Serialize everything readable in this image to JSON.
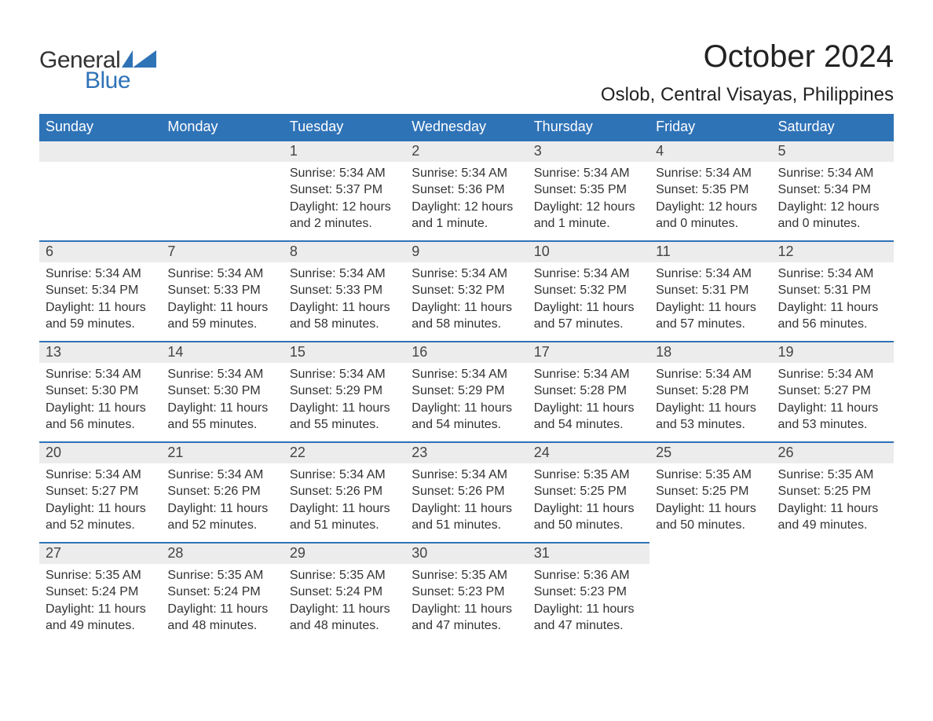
{
  "logo": {
    "word1": "General",
    "word2": "Blue"
  },
  "title": "October 2024",
  "location": "Oslob, Central Visayas, Philippines",
  "colors": {
    "brand_blue": "#2f73b7",
    "header_bg": "#2f73b7",
    "header_text": "#ffffff",
    "daynum_bg": "#ececec",
    "body_text": "#333333",
    "page_bg": "#ffffff"
  },
  "typography": {
    "title_fontsize": 40,
    "location_fontsize": 24,
    "weekday_fontsize": 18,
    "daynum_fontsize": 18,
    "body_fontsize": 16,
    "logo_fontsize": 30
  },
  "layout": {
    "columns": 7,
    "rows": 5,
    "first_weekday_index": 2
  },
  "weekdays": [
    "Sunday",
    "Monday",
    "Tuesday",
    "Wednesday",
    "Thursday",
    "Friday",
    "Saturday"
  ],
  "weeks": [
    [
      null,
      null,
      {
        "n": "1",
        "sunrise": "Sunrise: 5:34 AM",
        "sunset": "Sunset: 5:37 PM",
        "daylight": "Daylight: 12 hours and 2 minutes."
      },
      {
        "n": "2",
        "sunrise": "Sunrise: 5:34 AM",
        "sunset": "Sunset: 5:36 PM",
        "daylight": "Daylight: 12 hours and 1 minute."
      },
      {
        "n": "3",
        "sunrise": "Sunrise: 5:34 AM",
        "sunset": "Sunset: 5:35 PM",
        "daylight": "Daylight: 12 hours and 1 minute."
      },
      {
        "n": "4",
        "sunrise": "Sunrise: 5:34 AM",
        "sunset": "Sunset: 5:35 PM",
        "daylight": "Daylight: 12 hours and 0 minutes."
      },
      {
        "n": "5",
        "sunrise": "Sunrise: 5:34 AM",
        "sunset": "Sunset: 5:34 PM",
        "daylight": "Daylight: 12 hours and 0 minutes."
      }
    ],
    [
      {
        "n": "6",
        "sunrise": "Sunrise: 5:34 AM",
        "sunset": "Sunset: 5:34 PM",
        "daylight": "Daylight: 11 hours and 59 minutes."
      },
      {
        "n": "7",
        "sunrise": "Sunrise: 5:34 AM",
        "sunset": "Sunset: 5:33 PM",
        "daylight": "Daylight: 11 hours and 59 minutes."
      },
      {
        "n": "8",
        "sunrise": "Sunrise: 5:34 AM",
        "sunset": "Sunset: 5:33 PM",
        "daylight": "Daylight: 11 hours and 58 minutes."
      },
      {
        "n": "9",
        "sunrise": "Sunrise: 5:34 AM",
        "sunset": "Sunset: 5:32 PM",
        "daylight": "Daylight: 11 hours and 58 minutes."
      },
      {
        "n": "10",
        "sunrise": "Sunrise: 5:34 AM",
        "sunset": "Sunset: 5:32 PM",
        "daylight": "Daylight: 11 hours and 57 minutes."
      },
      {
        "n": "11",
        "sunrise": "Sunrise: 5:34 AM",
        "sunset": "Sunset: 5:31 PM",
        "daylight": "Daylight: 11 hours and 57 minutes."
      },
      {
        "n": "12",
        "sunrise": "Sunrise: 5:34 AM",
        "sunset": "Sunset: 5:31 PM",
        "daylight": "Daylight: 11 hours and 56 minutes."
      }
    ],
    [
      {
        "n": "13",
        "sunrise": "Sunrise: 5:34 AM",
        "sunset": "Sunset: 5:30 PM",
        "daylight": "Daylight: 11 hours and 56 minutes."
      },
      {
        "n": "14",
        "sunrise": "Sunrise: 5:34 AM",
        "sunset": "Sunset: 5:30 PM",
        "daylight": "Daylight: 11 hours and 55 minutes."
      },
      {
        "n": "15",
        "sunrise": "Sunrise: 5:34 AM",
        "sunset": "Sunset: 5:29 PM",
        "daylight": "Daylight: 11 hours and 55 minutes."
      },
      {
        "n": "16",
        "sunrise": "Sunrise: 5:34 AM",
        "sunset": "Sunset: 5:29 PM",
        "daylight": "Daylight: 11 hours and 54 minutes."
      },
      {
        "n": "17",
        "sunrise": "Sunrise: 5:34 AM",
        "sunset": "Sunset: 5:28 PM",
        "daylight": "Daylight: 11 hours and 54 minutes."
      },
      {
        "n": "18",
        "sunrise": "Sunrise: 5:34 AM",
        "sunset": "Sunset: 5:28 PM",
        "daylight": "Daylight: 11 hours and 53 minutes."
      },
      {
        "n": "19",
        "sunrise": "Sunrise: 5:34 AM",
        "sunset": "Sunset: 5:27 PM",
        "daylight": "Daylight: 11 hours and 53 minutes."
      }
    ],
    [
      {
        "n": "20",
        "sunrise": "Sunrise: 5:34 AM",
        "sunset": "Sunset: 5:27 PM",
        "daylight": "Daylight: 11 hours and 52 minutes."
      },
      {
        "n": "21",
        "sunrise": "Sunrise: 5:34 AM",
        "sunset": "Sunset: 5:26 PM",
        "daylight": "Daylight: 11 hours and 52 minutes."
      },
      {
        "n": "22",
        "sunrise": "Sunrise: 5:34 AM",
        "sunset": "Sunset: 5:26 PM",
        "daylight": "Daylight: 11 hours and 51 minutes."
      },
      {
        "n": "23",
        "sunrise": "Sunrise: 5:34 AM",
        "sunset": "Sunset: 5:26 PM",
        "daylight": "Daylight: 11 hours and 51 minutes."
      },
      {
        "n": "24",
        "sunrise": "Sunrise: 5:35 AM",
        "sunset": "Sunset: 5:25 PM",
        "daylight": "Daylight: 11 hours and 50 minutes."
      },
      {
        "n": "25",
        "sunrise": "Sunrise: 5:35 AM",
        "sunset": "Sunset: 5:25 PM",
        "daylight": "Daylight: 11 hours and 50 minutes."
      },
      {
        "n": "26",
        "sunrise": "Sunrise: 5:35 AM",
        "sunset": "Sunset: 5:25 PM",
        "daylight": "Daylight: 11 hours and 49 minutes."
      }
    ],
    [
      {
        "n": "27",
        "sunrise": "Sunrise: 5:35 AM",
        "sunset": "Sunset: 5:24 PM",
        "daylight": "Daylight: 11 hours and 49 minutes."
      },
      {
        "n": "28",
        "sunrise": "Sunrise: 5:35 AM",
        "sunset": "Sunset: 5:24 PM",
        "daylight": "Daylight: 11 hours and 48 minutes."
      },
      {
        "n": "29",
        "sunrise": "Sunrise: 5:35 AM",
        "sunset": "Sunset: 5:24 PM",
        "daylight": "Daylight: 11 hours and 48 minutes."
      },
      {
        "n": "30",
        "sunrise": "Sunrise: 5:35 AM",
        "sunset": "Sunset: 5:23 PM",
        "daylight": "Daylight: 11 hours and 47 minutes."
      },
      {
        "n": "31",
        "sunrise": "Sunrise: 5:36 AM",
        "sunset": "Sunset: 5:23 PM",
        "daylight": "Daylight: 11 hours and 47 minutes."
      },
      null,
      null
    ]
  ]
}
